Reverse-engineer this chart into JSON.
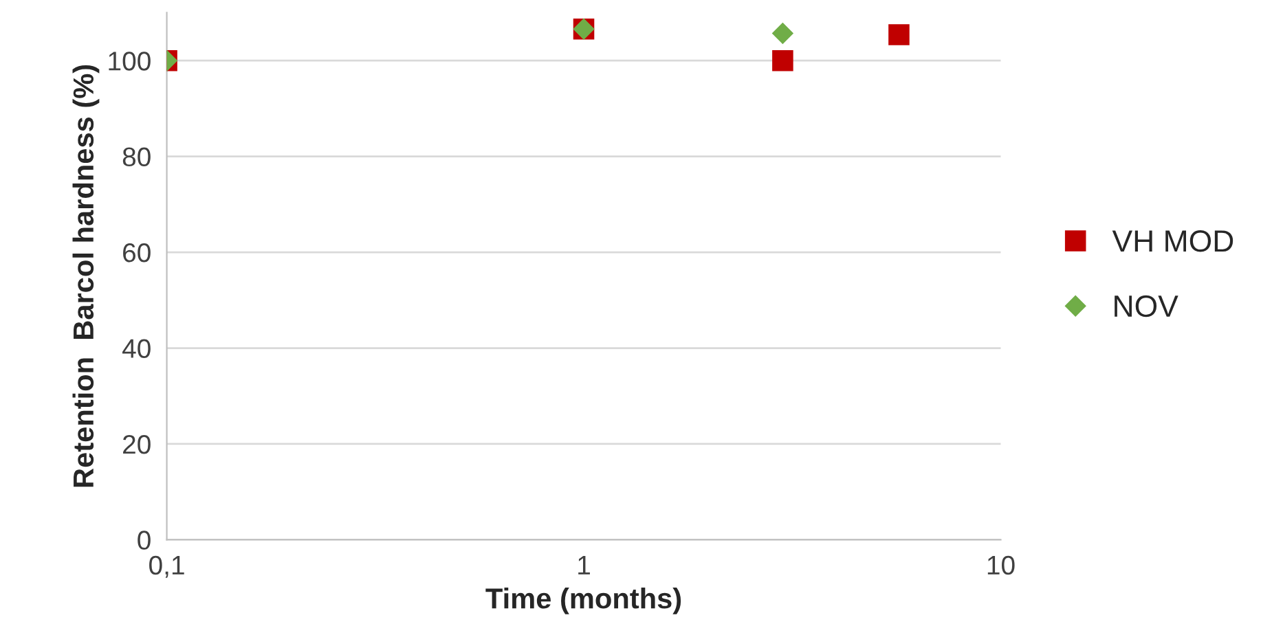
{
  "chart_data": {
    "type": "scatter",
    "xlabel": "Time (months)",
    "ylabel": "Retention  Barcol hardness (%)",
    "log": "x",
    "xlim": [
      0.1,
      10
    ],
    "xticks": [
      {
        "value": 0.1,
        "label": "0,1"
      },
      1,
      10
    ],
    "ylim": [
      0,
      110
    ],
    "yticks": [
      0,
      20,
      40,
      60,
      80,
      100
    ],
    "grid": "y",
    "legend": "right",
    "series": [
      {
        "name": "VH MOD",
        "color": "#c00000",
        "marker": "square",
        "x": [
          0.1,
          1,
          3.0,
          5.7
        ],
        "values": [
          100,
          106.6,
          100,
          105.4
        ]
      },
      {
        "name": "NOV",
        "color": "#70ad47",
        "marker": "diamond",
        "x": [
          0.1,
          1,
          3.0
        ],
        "values": [
          100,
          106.6,
          105.7
        ]
      }
    ]
  }
}
